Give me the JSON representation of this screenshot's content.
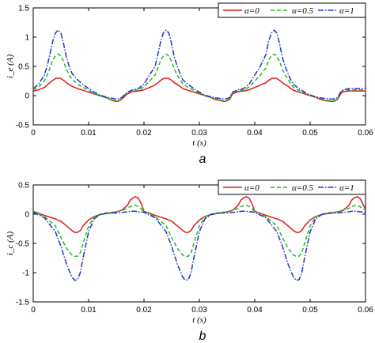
{
  "chart_data": [
    {
      "type": "line",
      "panel": "a",
      "xlabel": "t (s)",
      "ylabel": "i_e (A)",
      "xlim": [
        0,
        0.06
      ],
      "ylim": [
        -0.5,
        1.5
      ],
      "xticks": [
        "0",
        "0.01",
        "0.02",
        "0.03",
        "0.04",
        "0.05",
        "0.06"
      ],
      "yticks": [
        "-0.5",
        "0",
        "0.5",
        "1",
        "1.5"
      ],
      "grid": false,
      "legend_position": "top-right",
      "series": [
        {
          "name": "α=0",
          "color": "#dd1c1c",
          "dash": "solid",
          "x": [
            0,
            0.001,
            0.002,
            0.0025,
            0.003,
            0.0035,
            0.004,
            0.0045,
            0.005,
            0.0055,
            0.006,
            0.0065,
            0.007,
            0.008,
            0.009,
            0.01,
            0.011,
            0.012,
            0.013,
            0.014,
            0.0145,
            0.015,
            0.0155,
            0.016,
            0.017,
            0.018,
            0.019,
            0.02,
            0.021,
            0.022,
            0.0225,
            0.023,
            0.0235,
            0.024,
            0.0245,
            0.025,
            0.0255,
            0.026,
            0.0265,
            0.027,
            0.028,
            0.029,
            0.03,
            0.031,
            0.032,
            0.033,
            0.034,
            0.0345,
            0.035,
            0.0355,
            0.036,
            0.037,
            0.038,
            0.039,
            0.04,
            0.041,
            0.042,
            0.0425,
            0.043,
            0.0435,
            0.044,
            0.0445,
            0.045,
            0.0455,
            0.046,
            0.0465,
            0.047,
            0.048,
            0.049,
            0.05,
            0.051,
            0.052,
            0.053,
            0.054,
            0.0545,
            0.055,
            0.0555,
            0.056,
            0.057,
            0.058,
            0.059,
            0.06
          ],
          "y": [
            0.08,
            0.1,
            0.14,
            0.18,
            0.22,
            0.26,
            0.29,
            0.3,
            0.29,
            0.26,
            0.22,
            0.19,
            0.16,
            0.12,
            0.09,
            0.06,
            0.03,
            0.0,
            -0.03,
            -0.07,
            -0.09,
            -0.1,
            -0.09,
            -0.06,
            0.03,
            0.07,
            0.08,
            0.1,
            0.14,
            0.18,
            0.22,
            0.26,
            0.29,
            0.3,
            0.29,
            0.26,
            0.22,
            0.19,
            0.16,
            0.12,
            0.09,
            0.06,
            0.03,
            0.0,
            -0.03,
            -0.07,
            -0.09,
            -0.1,
            -0.09,
            -0.06,
            0.03,
            0.07,
            0.08,
            0.1,
            0.14,
            0.18,
            0.22,
            0.26,
            0.29,
            0.3,
            0.29,
            0.26,
            0.22,
            0.19,
            0.16,
            0.12,
            0.09,
            0.06,
            0.03,
            0.0,
            -0.03,
            -0.07,
            -0.09,
            -0.1,
            -0.09,
            -0.06,
            0.03,
            0.07,
            0.08,
            0.08,
            0.08,
            0.08
          ]
        },
        {
          "name": "α=0.5",
          "color": "#22bb22",
          "dash": "dashed",
          "x": [
            0,
            0.001,
            0.002,
            0.0025,
            0.003,
            0.0035,
            0.004,
            0.0045,
            0.005,
            0.0055,
            0.006,
            0.0065,
            0.007,
            0.008,
            0.009,
            0.01,
            0.011,
            0.012,
            0.013,
            0.014,
            0.0145,
            0.015,
            0.0155,
            0.016,
            0.017,
            0.018,
            0.019,
            0.02,
            0.021,
            0.022,
            0.0225,
            0.023,
            0.0235,
            0.024,
            0.0245,
            0.025,
            0.0255,
            0.026,
            0.0265,
            0.027,
            0.028,
            0.029,
            0.03,
            0.031,
            0.032,
            0.033,
            0.034,
            0.0345,
            0.035,
            0.0355,
            0.036,
            0.037,
            0.038,
            0.039,
            0.04,
            0.041,
            0.042,
            0.0425,
            0.043,
            0.0435,
            0.044,
            0.0445,
            0.045,
            0.0455,
            0.046,
            0.0465,
            0.047,
            0.048,
            0.049,
            0.05,
            0.051,
            0.052,
            0.053,
            0.054,
            0.0545,
            0.055,
            0.0555,
            0.056,
            0.057,
            0.058,
            0.059,
            0.06
          ],
          "y": [
            0.1,
            0.15,
            0.25,
            0.35,
            0.47,
            0.6,
            0.68,
            0.71,
            0.68,
            0.58,
            0.45,
            0.35,
            0.28,
            0.2,
            0.14,
            0.09,
            0.04,
            0.0,
            -0.03,
            -0.06,
            -0.08,
            -0.09,
            -0.08,
            -0.05,
            0.06,
            0.09,
            0.1,
            0.15,
            0.25,
            0.35,
            0.47,
            0.6,
            0.68,
            0.71,
            0.68,
            0.58,
            0.45,
            0.35,
            0.28,
            0.2,
            0.14,
            0.09,
            0.04,
            0.0,
            -0.03,
            -0.06,
            -0.08,
            -0.09,
            -0.08,
            -0.05,
            0.06,
            0.09,
            0.1,
            0.15,
            0.25,
            0.35,
            0.47,
            0.6,
            0.68,
            0.71,
            0.68,
            0.58,
            0.45,
            0.35,
            0.28,
            0.2,
            0.14,
            0.09,
            0.04,
            0.0,
            -0.03,
            -0.06,
            -0.08,
            -0.09,
            -0.08,
            -0.05,
            0.06,
            0.09,
            0.1,
            0.1,
            0.1,
            0.1
          ]
        },
        {
          "name": "α=1",
          "color": "#2233cc",
          "dash": "dashdot",
          "x": [
            0,
            0.001,
            0.002,
            0.0025,
            0.003,
            0.0035,
            0.004,
            0.0045,
            0.005,
            0.0055,
            0.006,
            0.0065,
            0.007,
            0.008,
            0.009,
            0.01,
            0.011,
            0.012,
            0.013,
            0.014,
            0.0145,
            0.015,
            0.0155,
            0.016,
            0.017,
            0.018,
            0.019,
            0.02,
            0.021,
            0.022,
            0.0225,
            0.023,
            0.0235,
            0.024,
            0.0245,
            0.025,
            0.0255,
            0.026,
            0.0265,
            0.027,
            0.028,
            0.029,
            0.03,
            0.031,
            0.032,
            0.033,
            0.034,
            0.0345,
            0.035,
            0.0355,
            0.036,
            0.037,
            0.038,
            0.039,
            0.04,
            0.041,
            0.042,
            0.0425,
            0.043,
            0.0435,
            0.044,
            0.0445,
            0.045,
            0.0455,
            0.046,
            0.0465,
            0.047,
            0.048,
            0.049,
            0.05,
            0.051,
            0.052,
            0.053,
            0.054,
            0.0545,
            0.055,
            0.0555,
            0.056,
            0.057,
            0.058,
            0.059,
            0.06
          ],
          "y": [
            0.12,
            0.2,
            0.35,
            0.5,
            0.7,
            0.92,
            1.07,
            1.12,
            1.07,
            0.88,
            0.65,
            0.5,
            0.38,
            0.27,
            0.19,
            0.12,
            0.06,
            0.01,
            -0.02,
            -0.04,
            -0.05,
            -0.06,
            -0.05,
            -0.03,
            0.06,
            0.1,
            0.12,
            0.2,
            0.35,
            0.5,
            0.7,
            0.92,
            1.07,
            1.12,
            1.07,
            0.88,
            0.65,
            0.5,
            0.38,
            0.27,
            0.19,
            0.12,
            0.06,
            0.01,
            -0.02,
            -0.04,
            -0.05,
            -0.06,
            -0.05,
            -0.03,
            0.06,
            0.1,
            0.12,
            0.2,
            0.35,
            0.5,
            0.7,
            0.92,
            1.07,
            1.12,
            1.07,
            0.88,
            0.65,
            0.5,
            0.38,
            0.27,
            0.19,
            0.12,
            0.06,
            0.01,
            -0.02,
            -0.04,
            -0.05,
            -0.06,
            -0.05,
            -0.03,
            0.06,
            0.1,
            0.12,
            0.12,
            0.12,
            0.12
          ]
        }
      ]
    },
    {
      "type": "line",
      "panel": "b",
      "xlabel": "t (s)",
      "ylabel": "i_c (A)",
      "xlim": [
        0,
        0.06
      ],
      "ylim": [
        -1.5,
        0.5
      ],
      "xticks": [
        "0",
        "0.01",
        "0.02",
        "0.03",
        "0.04",
        "0.05",
        "0.06"
      ],
      "yticks": [
        "-1.5",
        "-1",
        "-0.5",
        "0",
        "0.5"
      ],
      "grid": false,
      "legend_position": "top-right",
      "series": [
        {
          "name": "α=0",
          "color": "#dd1c1c",
          "dash": "solid",
          "x": [
            0,
            0.002,
            0.004,
            0.005,
            0.006,
            0.007,
            0.0075,
            0.008,
            0.0085,
            0.009,
            0.01,
            0.011,
            0.012,
            0.013,
            0.014,
            0.015,
            0.016,
            0.017,
            0.0175,
            0.018,
            0.0185,
            0.019,
            0.0195,
            0.02,
            0.022,
            0.024,
            0.025,
            0.026,
            0.027,
            0.0275,
            0.028,
            0.0285,
            0.029,
            0.03,
            0.031,
            0.032,
            0.033,
            0.034,
            0.035,
            0.036,
            0.037,
            0.0375,
            0.038,
            0.0385,
            0.039,
            0.0395,
            0.04,
            0.042,
            0.044,
            0.045,
            0.046,
            0.047,
            0.0475,
            0.048,
            0.0485,
            0.049,
            0.05,
            0.051,
            0.052,
            0.053,
            0.054,
            0.055,
            0.056,
            0.057,
            0.0575,
            0.058,
            0.0585,
            0.059,
            0.0595,
            0.06
          ],
          "y": [
            0.05,
            -0.02,
            -0.08,
            -0.12,
            -0.2,
            -0.28,
            -0.31,
            -0.31,
            -0.28,
            -0.2,
            -0.1,
            -0.04,
            -0.01,
            0.01,
            0.02,
            0.04,
            0.07,
            0.15,
            0.24,
            0.28,
            0.3,
            0.27,
            0.18,
            0.05,
            -0.02,
            -0.08,
            -0.12,
            -0.2,
            -0.28,
            -0.31,
            -0.31,
            -0.28,
            -0.2,
            -0.1,
            -0.04,
            -0.01,
            0.01,
            0.02,
            0.04,
            0.07,
            0.15,
            0.24,
            0.28,
            0.3,
            0.27,
            0.18,
            0.05,
            -0.02,
            -0.08,
            -0.12,
            -0.2,
            -0.28,
            -0.31,
            -0.31,
            -0.28,
            -0.2,
            -0.1,
            -0.04,
            -0.01,
            0.01,
            0.02,
            0.04,
            0.07,
            0.15,
            0.24,
            0.28,
            0.3,
            0.27,
            0.18,
            0.08
          ]
        },
        {
          "name": "α=0.5",
          "color": "#22bb22",
          "dash": "dashed",
          "x": [
            0,
            0.002,
            0.004,
            0.005,
            0.006,
            0.007,
            0.0075,
            0.008,
            0.0085,
            0.009,
            0.01,
            0.011,
            0.012,
            0.013,
            0.014,
            0.015,
            0.016,
            0.017,
            0.0175,
            0.018,
            0.0185,
            0.019,
            0.0195,
            0.02,
            0.022,
            0.024,
            0.025,
            0.026,
            0.027,
            0.0275,
            0.028,
            0.0285,
            0.029,
            0.03,
            0.031,
            0.032,
            0.033,
            0.034,
            0.035,
            0.036,
            0.037,
            0.0375,
            0.038,
            0.0385,
            0.039,
            0.0395,
            0.04,
            0.042,
            0.044,
            0.045,
            0.046,
            0.047,
            0.0475,
            0.048,
            0.0485,
            0.049,
            0.05,
            0.051,
            0.052,
            0.053,
            0.054,
            0.055,
            0.056,
            0.057,
            0.0575,
            0.058,
            0.0585,
            0.059,
            0.0595,
            0.06
          ],
          "y": [
            0.05,
            -0.04,
            -0.2,
            -0.4,
            -0.58,
            -0.7,
            -0.72,
            -0.72,
            -0.66,
            -0.5,
            -0.2,
            -0.05,
            0.0,
            0.02,
            0.03,
            0.04,
            0.06,
            0.1,
            0.13,
            0.15,
            0.15,
            0.13,
            0.09,
            0.05,
            -0.04,
            -0.2,
            -0.4,
            -0.58,
            -0.7,
            -0.72,
            -0.72,
            -0.66,
            -0.5,
            -0.2,
            -0.05,
            0.0,
            0.02,
            0.03,
            0.04,
            0.06,
            0.1,
            0.13,
            0.15,
            0.15,
            0.13,
            0.09,
            0.05,
            -0.04,
            -0.2,
            -0.4,
            -0.58,
            -0.7,
            -0.72,
            -0.72,
            -0.66,
            -0.5,
            -0.2,
            -0.05,
            0.0,
            0.02,
            0.03,
            0.04,
            0.06,
            0.1,
            0.13,
            0.15,
            0.15,
            0.13,
            0.09,
            0.07
          ]
        },
        {
          "name": "α=1",
          "color": "#2233cc",
          "dash": "dashdot",
          "x": [
            0,
            0.002,
            0.004,
            0.005,
            0.006,
            0.007,
            0.0075,
            0.008,
            0.0085,
            0.009,
            0.01,
            0.011,
            0.012,
            0.013,
            0.014,
            0.015,
            0.016,
            0.017,
            0.0175,
            0.018,
            0.0185,
            0.019,
            0.0195,
            0.02,
            0.022,
            0.024,
            0.025,
            0.026,
            0.027,
            0.0275,
            0.028,
            0.0285,
            0.029,
            0.03,
            0.031,
            0.032,
            0.033,
            0.034,
            0.035,
            0.036,
            0.037,
            0.0375,
            0.038,
            0.0385,
            0.039,
            0.0395,
            0.04,
            0.042,
            0.044,
            0.045,
            0.046,
            0.047,
            0.0475,
            0.048,
            0.0485,
            0.049,
            0.05,
            0.051,
            0.052,
            0.053,
            0.054,
            0.055,
            0.056,
            0.057,
            0.0575,
            0.058,
            0.0585,
            0.059,
            0.0595,
            0.06
          ],
          "y": [
            0.03,
            -0.06,
            -0.3,
            -0.55,
            -0.85,
            -1.08,
            -1.13,
            -1.12,
            -1.0,
            -0.75,
            -0.3,
            -0.08,
            -0.01,
            0.01,
            0.02,
            0.02,
            0.03,
            0.04,
            0.05,
            0.05,
            0.05,
            0.04,
            0.04,
            0.03,
            -0.06,
            -0.3,
            -0.55,
            -0.85,
            -1.08,
            -1.13,
            -1.12,
            -1.0,
            -0.75,
            -0.3,
            -0.08,
            -0.01,
            0.01,
            0.02,
            0.02,
            0.03,
            0.04,
            0.05,
            0.05,
            0.05,
            0.04,
            0.04,
            0.03,
            -0.06,
            -0.3,
            -0.55,
            -0.85,
            -1.08,
            -1.13,
            -1.12,
            -1.0,
            -0.75,
            -0.3,
            -0.08,
            -0.01,
            0.01,
            0.02,
            0.02,
            0.03,
            0.04,
            0.05,
            0.05,
            0.05,
            0.04,
            0.04,
            0.03
          ]
        }
      ]
    }
  ],
  "figure": {
    "panel_labels": [
      "a",
      "b"
    ]
  }
}
